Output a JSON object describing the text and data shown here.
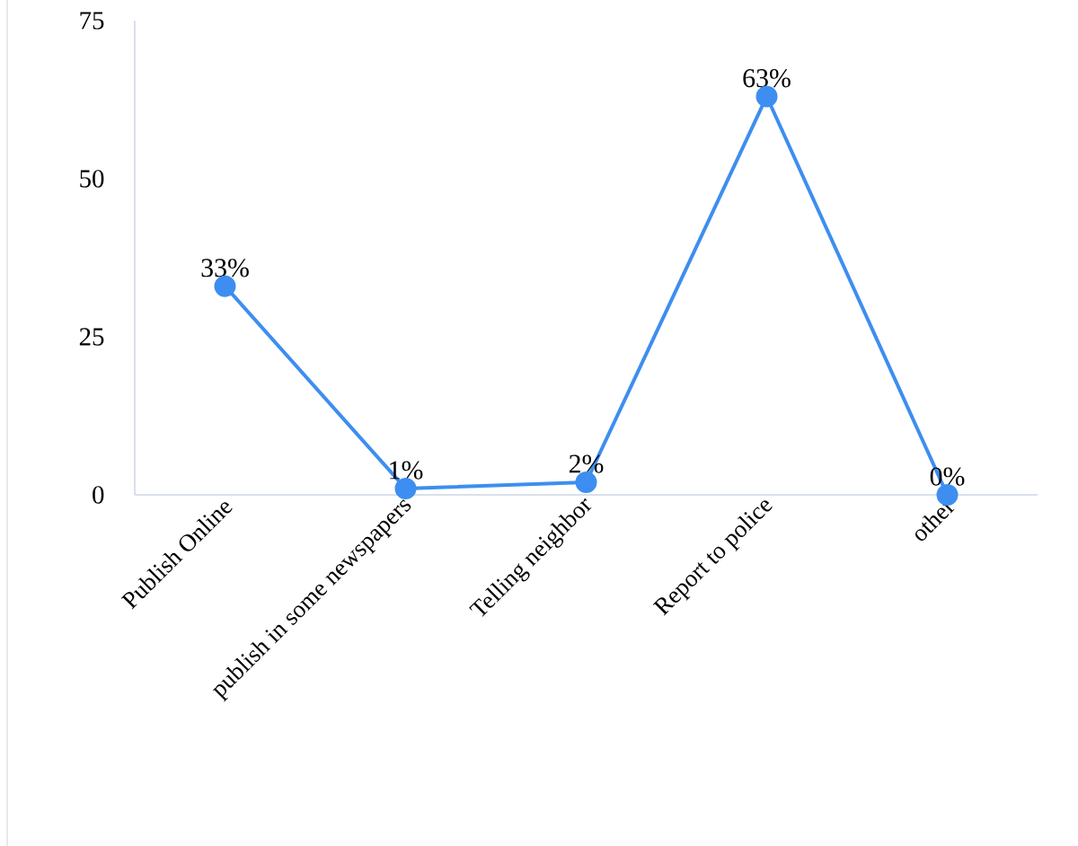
{
  "chart_data": {
    "type": "line",
    "categories": [
      "Publish Online",
      "publish in some newspapers",
      "Telling neighbor",
      "Report to police",
      "other"
    ],
    "series": [
      {
        "color": "#3d8ef0",
        "values": [
          33,
          1,
          2,
          63,
          0
        ]
      }
    ],
    "value_labels": [
      "33%",
      "1%",
      "2%",
      "63%",
      "0%"
    ],
    "ylim": [
      0,
      75
    ],
    "yticks": [
      0,
      25,
      50,
      75
    ],
    "grid": false,
    "marker": "circle",
    "line_style": "solid"
  }
}
